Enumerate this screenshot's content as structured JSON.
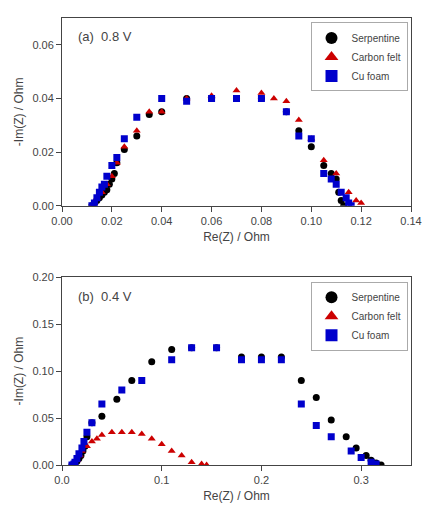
{
  "chart_data": [
    {
      "type": "scatter",
      "title": "(a)  0.8 V",
      "xlabel": "Re(Z) / Ohm",
      "ylabel": "-Im(Z) / Ohm",
      "xlim": [
        0.0,
        0.14
      ],
      "ylim": [
        0.0,
        0.07
      ],
      "xticks": [
        {
          "value": 0,
          "label": "0.00"
        },
        0.02,
        0.04,
        0.06,
        0.08,
        {
          "value": 0.1,
          "label": "0.10"
        },
        0.12,
        0.14
      ],
      "yticks": [
        {
          "value": 0,
          "label": "0.00"
        },
        0.02,
        0.04,
        0.06
      ],
      "grid": false,
      "legend": "upper right",
      "series": [
        {
          "name": "Serpentine",
          "color": "#000000",
          "marker": "circle",
          "x": [
            0.012,
            0.013,
            0.014,
            0.015,
            0.016,
            0.017,
            0.018,
            0.019,
            0.02,
            0.021,
            0.022,
            0.025,
            0.03,
            0.035,
            0.04,
            0.05,
            0.06,
            0.07,
            0.08,
            0.09,
            0.095,
            0.1,
            0.105,
            0.108,
            0.11,
            0.111,
            0.112,
            0.113
          ],
          "values": [
            0.0,
            0.001,
            0.002,
            0.003,
            0.004,
            0.005,
            0.006,
            0.008,
            0.01,
            0.012,
            0.016,
            0.021,
            0.026,
            0.034,
            0.035,
            0.04,
            0.04,
            0.04,
            0.04,
            0.035,
            0.028,
            0.022,
            0.015,
            0.012,
            0.01,
            0.005,
            0.002,
            0.0
          ]
        },
        {
          "name": "Carbon felt",
          "color": "#cc0000",
          "marker": "triangle-up",
          "x": [
            0.012,
            0.013,
            0.014,
            0.016,
            0.018,
            0.02,
            0.022,
            0.025,
            0.03,
            0.035,
            0.04,
            0.05,
            0.06,
            0.07,
            0.08,
            0.085,
            0.09,
            0.095,
            0.1,
            0.105,
            0.11,
            0.115,
            0.118,
            0.12
          ],
          "values": [
            0.0,
            0.001,
            0.003,
            0.005,
            0.008,
            0.011,
            0.016,
            0.022,
            0.028,
            0.035,
            0.035,
            0.04,
            0.041,
            0.043,
            0.042,
            0.04,
            0.039,
            0.032,
            0.025,
            0.017,
            0.012,
            0.005,
            0.002,
            0.001
          ]
        },
        {
          "name": "Cu foam",
          "color": "#0000cc",
          "marker": "square",
          "x": [
            0.012,
            0.013,
            0.014,
            0.015,
            0.016,
            0.017,
            0.018,
            0.02,
            0.022,
            0.025,
            0.03,
            0.04,
            0.05,
            0.06,
            0.07,
            0.08,
            0.09,
            0.095,
            0.1,
            0.105,
            0.108,
            0.11,
            0.112,
            0.114,
            0.115,
            0.116
          ],
          "values": [
            0.0,
            0.001,
            0.003,
            0.005,
            0.007,
            0.008,
            0.011,
            0.015,
            0.018,
            0.025,
            0.033,
            0.04,
            0.039,
            0.04,
            0.04,
            0.04,
            0.035,
            0.026,
            0.025,
            0.012,
            0.01,
            0.008,
            0.005,
            0.003,
            0.001,
            0.0
          ]
        }
      ]
    },
    {
      "type": "scatter",
      "title": "(b)  0.4 V",
      "xlabel": "Re(Z) / Ohm",
      "ylabel": "-Im(Z) / Ohm",
      "xlim": [
        0.0,
        0.35
      ],
      "ylim": [
        0.0,
        0.2
      ],
      "xticks": [
        {
          "value": 0,
          "label": "0.0"
        },
        0.1,
        0.2,
        0.3
      ],
      "yticks": [
        {
          "value": 0,
          "label": "0.00"
        },
        0.05,
        {
          "value": 0.1,
          "label": "0.10"
        },
        0.15,
        {
          "value": 0.2,
          "label": "0.20"
        }
      ],
      "grid": false,
      "legend": "upper right",
      "series": [
        {
          "name": "Serpentine",
          "color": "#000000",
          "marker": "circle",
          "x": [
            0.01,
            0.012,
            0.013,
            0.015,
            0.017,
            0.019,
            0.021,
            0.023,
            0.025,
            0.03,
            0.04,
            0.055,
            0.07,
            0.09,
            0.11,
            0.13,
            0.155,
            0.18,
            0.2,
            0.22,
            0.24,
            0.255,
            0.27,
            0.285,
            0.295,
            0.305,
            0.31,
            0.315,
            0.32
          ],
          "values": [
            0.0,
            0.001,
            0.002,
            0.004,
            0.007,
            0.01,
            0.015,
            0.02,
            0.03,
            0.045,
            0.052,
            0.07,
            0.09,
            0.11,
            0.123,
            0.125,
            0.125,
            0.115,
            0.115,
            0.115,
            0.09,
            0.072,
            0.048,
            0.03,
            0.018,
            0.01,
            0.005,
            0.002,
            0.0
          ]
        },
        {
          "name": "Carbon felt",
          "color": "#cc0000",
          "marker": "triangle-up",
          "x": [
            0.01,
            0.012,
            0.015,
            0.018,
            0.02,
            0.025,
            0.03,
            0.035,
            0.04,
            0.05,
            0.06,
            0.07,
            0.08,
            0.09,
            0.1,
            0.11,
            0.12,
            0.13,
            0.14,
            0.145
          ],
          "values": [
            0.0,
            0.002,
            0.005,
            0.01,
            0.015,
            0.02,
            0.025,
            0.028,
            0.032,
            0.035,
            0.035,
            0.035,
            0.033,
            0.028,
            0.022,
            0.015,
            0.01,
            0.003,
            0.001,
            0.0
          ]
        },
        {
          "name": "Cu foam",
          "color": "#0000cc",
          "marker": "square",
          "x": [
            0.01,
            0.012,
            0.013,
            0.015,
            0.017,
            0.02,
            0.022,
            0.025,
            0.03,
            0.04,
            0.06,
            0.08,
            0.11,
            0.13,
            0.155,
            0.18,
            0.2,
            0.22,
            0.24,
            0.255,
            0.27,
            0.29,
            0.3,
            0.31,
            0.315
          ],
          "values": [
            0.0,
            0.001,
            0.003,
            0.007,
            0.012,
            0.018,
            0.025,
            0.035,
            0.045,
            0.065,
            0.08,
            0.09,
            0.112,
            0.125,
            0.125,
            0.112,
            0.112,
            0.112,
            0.065,
            0.042,
            0.03,
            0.015,
            0.008,
            0.003,
            0.001
          ]
        }
      ]
    }
  ]
}
